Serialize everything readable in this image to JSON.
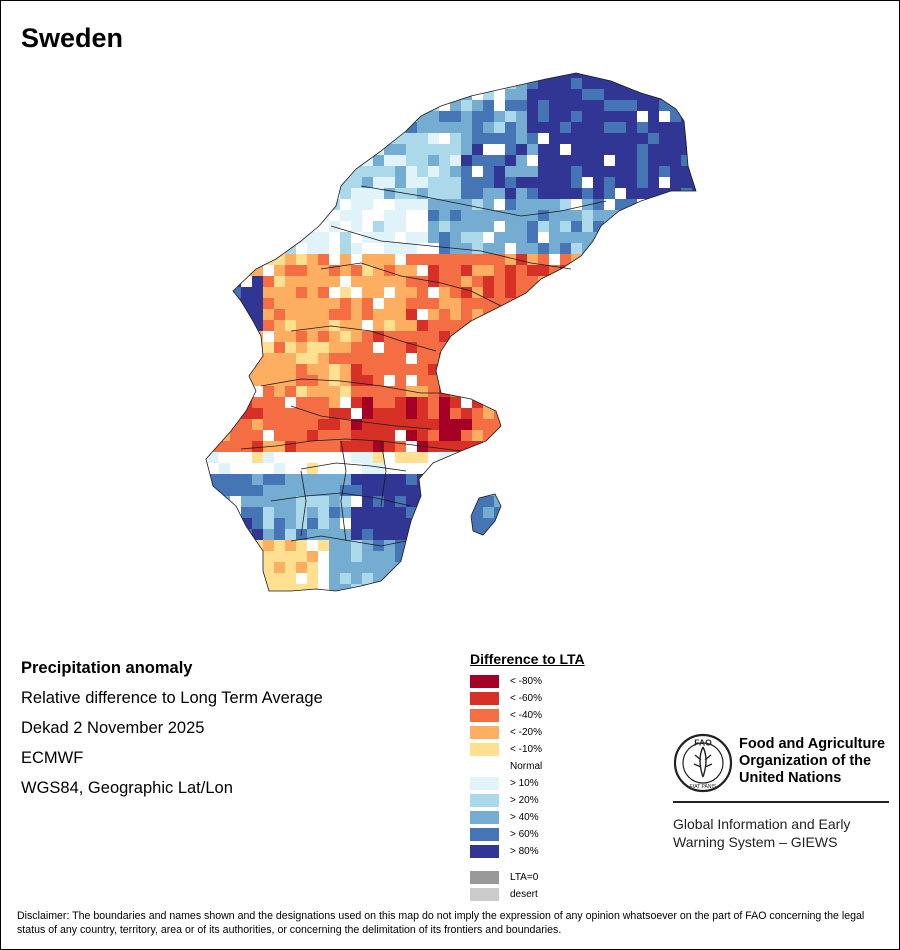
{
  "map_title": "Sweden",
  "info": {
    "heading": "Precipitation anomaly",
    "subtitle": "Relative difference to Long Term Average",
    "period": "Dekad 2 November 2025",
    "model": "ECMWF",
    "projection": "WGS84, Geographic Lat/Lon"
  },
  "legend": {
    "title": "Difference to LTA",
    "classes": [
      {
        "label": "< -80%",
        "color": "#a50026"
      },
      {
        "label": "< -60%",
        "color": "#d73027"
      },
      {
        "label": "< -40%",
        "color": "#f46d43"
      },
      {
        "label": "< -20%",
        "color": "#fdae61"
      },
      {
        "label": "< -10%",
        "color": "#fee090"
      },
      {
        "label": "Normal",
        "color": "#ffffff"
      },
      {
        "label": "> 10%",
        "color": "#e0f3f8"
      },
      {
        "label": "> 20%",
        "color": "#abd9e9"
      },
      {
        "label": "> 40%",
        "color": "#74add1"
      },
      {
        "label": "> 60%",
        "color": "#4575b4"
      },
      {
        "label": "> 80%",
        "color": "#313695"
      }
    ],
    "extra": [
      {
        "label": "LTA=0",
        "color": "#999999"
      },
      {
        "label": "desert",
        "color": "#cccccc"
      }
    ]
  },
  "organization": {
    "name_line1": "Food and Agriculture",
    "name_line2": "Organization of the",
    "name_line3": "United Nations",
    "system_line1": "Global Information and Early",
    "system_line2": "Warning System – GIEWS",
    "logo_text": "FAO",
    "logo_motto": "FIAT PANIS"
  },
  "disclaimer": "Disclaimer: The boundaries and names shown and the designations used on this map do not imply the expression of any opinion whatsoever on the part of FAO concerning the legal status of any country, territory, area or of its authorities, or concerning the delimitation of its frontiers and boundaries."
}
